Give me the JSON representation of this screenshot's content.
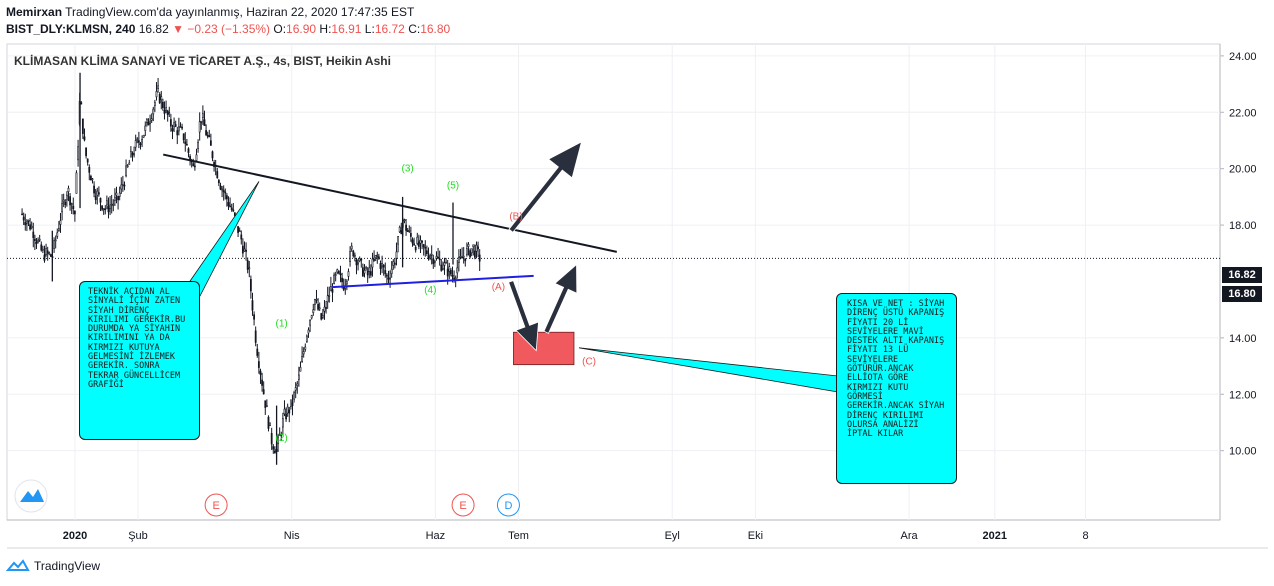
{
  "header": {
    "author": "Memirxan",
    "published_text": "TradingView.com'da yayınlanmış, Haziran 22, 2020 17:47:35 EST",
    "symbol": "BIST_DLY:KLMSN, 240",
    "last": "16.82",
    "change": "▼ −0.23 (−1.35%)",
    "o_label": "O:",
    "o": "16.90",
    "h_label": "H:",
    "h": "16.91",
    "l_label": "L:",
    "l": "16.72",
    "c_label": "C:",
    "c": "16.80"
  },
  "chart_data": {
    "type": "candlestick",
    "title": "KLİMASAN KLİMA SANAYİ VE TİCARET A.Ş., 4s, BIST, Heikin Ashi",
    "ylim": [
      8.2,
      25.0
    ],
    "y_ticks": [
      "24.00",
      "22.00",
      "20.00",
      "18.00",
      "14.00",
      "12.00",
      "10.00"
    ],
    "x_ticks": [
      "2020",
      "Şub",
      "Nis",
      "Haz",
      "Tem",
      "Eyl",
      "Eki",
      "Ara",
      "2021",
      "8"
    ],
    "price_labels": [
      "16.82",
      "16.80"
    ],
    "price_path": [
      {
        "d": "2019-12-20",
        "v": 18.4
      },
      {
        "d": "2019-12-24",
        "v": 17.9
      },
      {
        "d": "2019-12-28",
        "v": 17.0
      },
      {
        "d": "2020-01-01",
        "v": 16.9
      },
      {
        "d": "2020-01-04",
        "v": 18.2
      },
      {
        "d": "2020-01-07",
        "v": 19.3
      },
      {
        "d": "2020-01-10",
        "v": 18.4
      },
      {
        "d": "2020-01-12",
        "v": 22.6
      },
      {
        "d": "2020-01-14",
        "v": 20.6
      },
      {
        "d": "2020-01-18",
        "v": 19.2
      },
      {
        "d": "2020-01-22",
        "v": 18.6
      },
      {
        "d": "2020-01-27",
        "v": 18.9
      },
      {
        "d": "2020-02-02",
        "v": 20.6
      },
      {
        "d": "2020-02-07",
        "v": 21.4
      },
      {
        "d": "2020-02-12",
        "v": 22.7
      },
      {
        "d": "2020-02-17",
        "v": 21.6
      },
      {
        "d": "2020-02-22",
        "v": 21.2
      },
      {
        "d": "2020-02-26",
        "v": 20.0
      },
      {
        "d": "2020-02-29",
        "v": 21.9
      },
      {
        "d": "2020-03-04",
        "v": 20.7
      },
      {
        "d": "2020-03-08",
        "v": 19.4
      },
      {
        "d": "2020-03-12",
        "v": 18.6
      },
      {
        "d": "2020-03-16",
        "v": 17.5
      },
      {
        "d": "2020-03-19",
        "v": 16.4
      },
      {
        "d": "2020-03-22",
        "v": 13.8
      },
      {
        "d": "2020-03-25",
        "v": 12.0
      },
      {
        "d": "2020-03-28",
        "v": 10.4
      },
      {
        "d": "2020-03-30",
        "v": 10.0
      },
      {
        "d": "2020-04-02",
        "v": 11.2
      },
      {
        "d": "2020-04-05",
        "v": 11.6
      },
      {
        "d": "2020-04-08",
        "v": 12.6
      },
      {
        "d": "2020-04-11",
        "v": 14.2
      },
      {
        "d": "2020-04-14",
        "v": 15.4
      },
      {
        "d": "2020-04-17",
        "v": 14.6
      },
      {
        "d": "2020-04-20",
        "v": 15.6
      },
      {
        "d": "2020-04-23",
        "v": 16.2
      },
      {
        "d": "2020-04-26",
        "v": 15.9
      },
      {
        "d": "2020-04-29",
        "v": 17.2
      },
      {
        "d": "2020-05-02",
        "v": 16.6
      },
      {
        "d": "2020-05-05",
        "v": 16.2
      },
      {
        "d": "2020-05-09",
        "v": 16.9
      },
      {
        "d": "2020-05-13",
        "v": 16.1
      },
      {
        "d": "2020-05-16",
        "v": 16.8
      },
      {
        "d": "2020-05-19",
        "v": 18.2
      },
      {
        "d": "2020-05-22",
        "v": 17.6
      },
      {
        "d": "2020-05-26",
        "v": 17.2
      },
      {
        "d": "2020-05-30",
        "v": 17.0
      },
      {
        "d": "2020-06-04",
        "v": 16.6
      },
      {
        "d": "2020-06-08",
        "v": 16.2
      },
      {
        "d": "2020-06-12",
        "v": 16.9
      },
      {
        "d": "2020-06-16",
        "v": 17.2
      },
      {
        "d": "2020-06-19",
        "v": 16.8
      }
    ],
    "trendlines": [
      {
        "name": "black-resistance",
        "color": "#131722",
        "from": {
          "d": "2020-02-14",
          "v": 20.5
        },
        "to": {
          "d": "2020-08-12",
          "v": 17.05
        }
      },
      {
        "name": "blue-support",
        "color": "#1f1fe0",
        "from": {
          "d": "2020-04-21",
          "v": 15.8
        },
        "to": {
          "d": "2020-07-10",
          "v": 16.2
        }
      }
    ],
    "wave_labels": [
      {
        "text": "(1)",
        "d": "2020-04-01",
        "v": 14.4,
        "color": "#22dd22"
      },
      {
        "text": "(2)",
        "d": "2020-04-01",
        "v": 10.35,
        "color": "#22dd22"
      },
      {
        "text": "(3)",
        "d": "2020-05-21",
        "v": 19.9,
        "color": "#22dd22"
      },
      {
        "text": "(4)",
        "d": "2020-05-30",
        "v": 15.6,
        "color": "#22dd22"
      },
      {
        "text": "(5)",
        "d": "2020-06-08",
        "v": 19.3,
        "color": "#22dd22"
      },
      {
        "text": "(A)",
        "d": "2020-06-26",
        "v": 15.7,
        "color": "#ef5350"
      },
      {
        "text": "(B)",
        "d": "2020-07-03",
        "v": 18.2,
        "color": "#ef5350"
      },
      {
        "text": "(C)",
        "d": "2020-08-01",
        "v": 13.05,
        "color": "#ef5350"
      }
    ],
    "annotations": {
      "left": "TEKNİK AÇIDAN AL SİNYALİ İÇİN ZATEN SİYAH DİRENÇ KIRILIMI GEREKİR.BU DURUMDA YA SİYAHIN KIRILIMINI YA DA KIRMIZI KUTUYA GELMESİNİ İZLEMEK GEREKİR. SONRA TEKRAR GÜNCELLİCEM GRAFİĞİ",
      "right": "KISA VE NET : SİYAH DİRENÇ ÜSTÜ KAPANIŞ FİYATI 20 Lİ SEVİYELERE MAVİ DESTEK ALTI KAPANIŞ FİYATI 13 LÜ SEVİYELERE GÖTÜRÜR.ANCAK ELLİOTA GÖRE KIRMIZI KUTU GÖRMESİ GEREKİR.ANCAK SİYAH DİRENÇ KIRILIMI OLURSA ANALİZİ İPTAL KILAR"
    },
    "event_markers": [
      {
        "text": "E",
        "d": "2020-03-06",
        "color": "#ef5350"
      },
      {
        "text": "E",
        "d": "2020-06-12",
        "color": "#ef5350"
      },
      {
        "text": "D",
        "d": "2020-06-30",
        "color": "#2196f3"
      }
    ],
    "colors": {
      "candle": "#131722",
      "red_box": "#f05a5f",
      "callout": "#00ffff",
      "arrow": "#2a2f3d",
      "grid": "#eef0f4"
    }
  },
  "footer": {
    "brand": "TradingView"
  }
}
